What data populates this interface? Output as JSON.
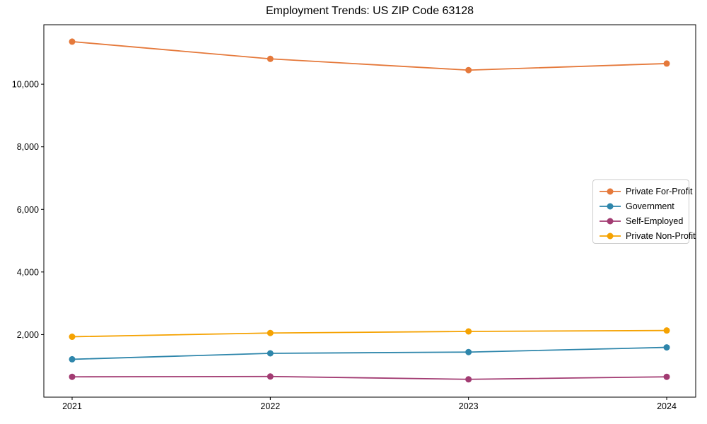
{
  "page": {
    "background_color": "#ffffff",
    "axis_color": "#000000",
    "legend_border_color": "#cccccc"
  },
  "chart_data": {
    "type": "line",
    "title": "Employment Trends: US ZIP Code 63128",
    "categories": [
      "2021",
      "2022",
      "2023",
      "2024"
    ],
    "series": [
      {
        "name": "Private For-Profit",
        "color": "#E5793B",
        "values": [
          11360,
          10810,
          10450,
          10660
        ]
      },
      {
        "name": "Government",
        "color": "#2E86AB",
        "values": [
          1210,
          1400,
          1440,
          1590
        ]
      },
      {
        "name": "Self-Employed",
        "color": "#A23B72",
        "values": [
          650,
          660,
          570,
          650
        ]
      },
      {
        "name": "Private Non-Profit",
        "color": "#F5A201",
        "values": [
          1930,
          2050,
          2100,
          2130
        ]
      }
    ],
    "xlabel": "",
    "ylabel": "",
    "ylim": [
      0,
      11900
    ],
    "yticks": [
      2000,
      4000,
      6000,
      8000,
      10000
    ],
    "ytick_labels": [
      "2,000",
      "4,000",
      "6,000",
      "8,000",
      "10,000"
    ],
    "grid": false,
    "legend_position": "center-right",
    "marker": "circle"
  }
}
